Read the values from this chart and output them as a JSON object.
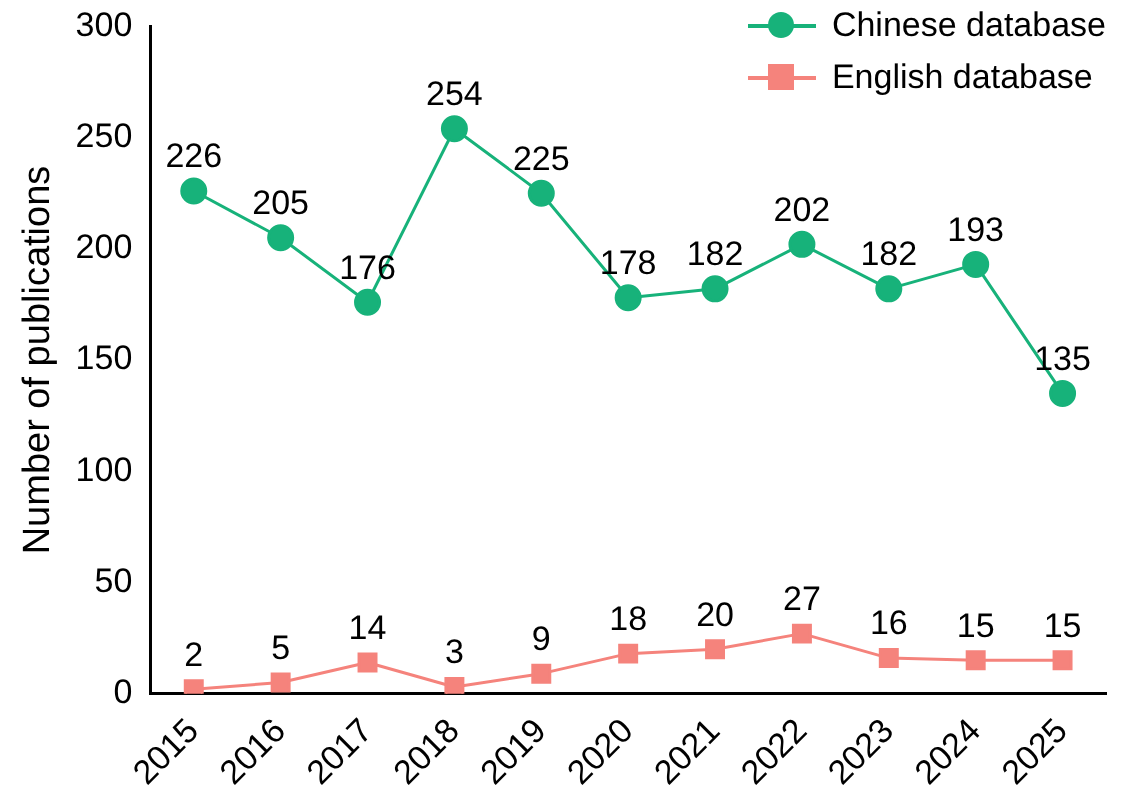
{
  "chart_data": {
    "type": "line",
    "ylabel": "Number of publications",
    "categories": [
      "2015",
      "2016",
      "2017",
      "2018",
      "2019",
      "2020",
      "2021",
      "2022",
      "2023",
      "2024",
      "2025"
    ],
    "series": [
      {
        "name": "Chinese database",
        "color": "#17b27a",
        "marker": "circle",
        "values": [
          226,
          205,
          176,
          254,
          225,
          178,
          182,
          202,
          182,
          193,
          135
        ]
      },
      {
        "name": "English database",
        "color": "#f5837c",
        "marker": "square",
        "values": [
          2,
          5,
          14,
          3,
          9,
          18,
          20,
          27,
          16,
          15,
          15
        ]
      }
    ],
    "ylim": [
      0,
      300
    ],
    "yticks": [
      0,
      50,
      100,
      150,
      200,
      250,
      300
    ],
    "grid": false,
    "legend": "top right",
    "data_labels": true
  }
}
